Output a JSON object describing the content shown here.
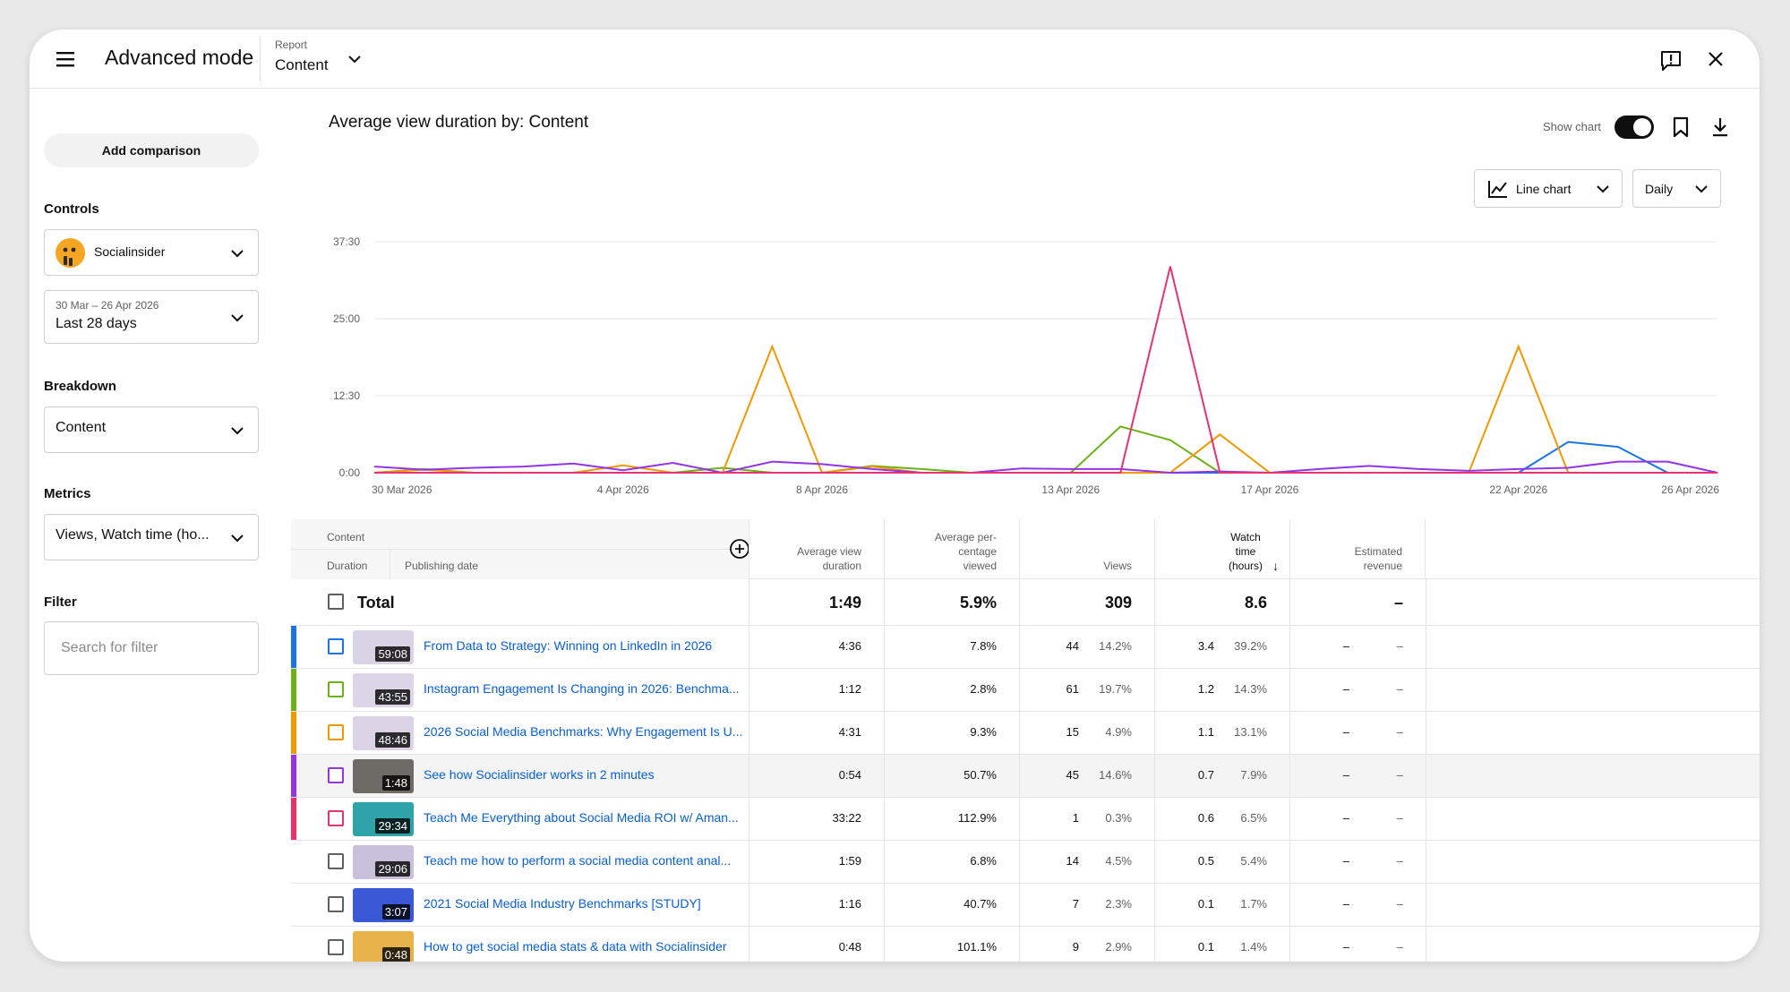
{
  "header": {
    "title": "Advanced mode",
    "report_label": "Report",
    "report_value": "Content"
  },
  "sidebar": {
    "add_comparison": "Add comparison",
    "controls_label": "Controls",
    "channel": "Socialinsider",
    "date_range": "30 Mar – 26 Apr 2026",
    "date_period": "Last 28 days",
    "breakdown_label": "Breakdown",
    "breakdown_value": "Content",
    "metrics_label": "Metrics",
    "metrics_value": "Views, Watch time (ho...",
    "filter_label": "Filter",
    "filter_placeholder": "Search for filter"
  },
  "main": {
    "title": "Average view duration by: Content",
    "show_chart_label": "Show chart",
    "show_chart_on": true,
    "chart_type": "Line chart",
    "interval": "Daily"
  },
  "chart_data": {
    "type": "line",
    "title": "Average view duration by: Content",
    "y_ticks": [
      "0:00",
      "12:30",
      "25:00",
      "37:30"
    ],
    "y_tick_values": [
      0,
      12.5,
      25,
      37.5
    ],
    "ylim": [
      0,
      37.5
    ],
    "x_ticks": [
      "30 Mar 2026",
      "4 Apr 2026",
      "8 Apr 2026",
      "13 Apr 2026",
      "17 Apr 2026",
      "22 Apr 2026",
      "26 Apr 2026"
    ],
    "x_tick_days": [
      0,
      5,
      9,
      14,
      18,
      23,
      27
    ],
    "days": 28,
    "grid": true,
    "series": [
      {
        "color": "#1a73e8",
        "values": [
          0,
          0,
          0,
          0,
          0,
          0,
          0,
          0,
          0,
          0,
          0,
          0,
          0,
          0,
          0,
          0,
          0,
          0,
          0,
          0,
          0,
          0,
          0,
          0,
          5,
          4.2,
          0,
          0
        ]
      },
      {
        "color": "#6bb314",
        "values": [
          0,
          0.6,
          0,
          0,
          0,
          0,
          0,
          0.8,
          0,
          0,
          1.1,
          0.6,
          0,
          0,
          0,
          7.5,
          5.3,
          0,
          0,
          0,
          0,
          0,
          0,
          0,
          0,
          0,
          0,
          0
        ]
      },
      {
        "color": "#f29900",
        "values": [
          0,
          0.5,
          0,
          0,
          0,
          1.2,
          0,
          0,
          20.5,
          0,
          1.0,
          0,
          0,
          0,
          0,
          0,
          0,
          6.2,
          0,
          0,
          0,
          0,
          0,
          20.5,
          0,
          0,
          0,
          0
        ]
      },
      {
        "color": "#9334e6",
        "values": [
          1,
          0.5,
          0.8,
          1.0,
          1.5,
          0.4,
          1.6,
          0,
          1.8,
          1.4,
          0.6,
          0,
          0,
          0.7,
          0.6,
          0.6,
          0,
          0.2,
          0,
          0.6,
          1.1,
          0.6,
          0.3,
          0.6,
          0.8,
          1.8,
          1.8,
          0
        ]
      },
      {
        "color": "#e8336d",
        "values": [
          0,
          0,
          0,
          0,
          0,
          0,
          0,
          0,
          0,
          0,
          0,
          0,
          0,
          0,
          0,
          0,
          33.5,
          0,
          0,
          0,
          0,
          0,
          0,
          0,
          0,
          0,
          0,
          0
        ]
      }
    ]
  },
  "table": {
    "content_header": "Content",
    "duration_header": "Duration",
    "publishing_header": "Publishing date",
    "metric_headers": [
      [
        "Average view",
        "duration"
      ],
      [
        "Average per-",
        "centage",
        "viewed"
      ],
      [
        "Views"
      ],
      [
        "Watch",
        "time",
        "(hours)"
      ],
      [
        "Estimated",
        "revenue"
      ]
    ],
    "sort_arrow": "↓",
    "total": {
      "label": "Total",
      "avd": "1:49",
      "pct": "5.9%",
      "views": "309",
      "watch": "8.6",
      "revenue": "–"
    },
    "rows": [
      {
        "color": "#1a73e8",
        "duration": "59:08",
        "title": "From Data to Strategy: Winning on LinkedIn in 2026",
        "avd": "4:36",
        "pct": "7.8%",
        "views": "44",
        "views_pct": "14.2%",
        "watch": "3.4",
        "watch_pct": "39.2%",
        "rev": "–",
        "rev_pct": "–",
        "thumb": "#d9d3e6",
        "checkbox_color": "#1a73e8"
      },
      {
        "color": "#6bb314",
        "duration": "43:55",
        "title": "Instagram Engagement Is Changing in 2026: Benchma...",
        "avd": "1:12",
        "pct": "2.8%",
        "views": "61",
        "views_pct": "19.7%",
        "watch": "1.2",
        "watch_pct": "14.3%",
        "rev": "–",
        "rev_pct": "–",
        "thumb": "#ddd6e8",
        "checkbox_color": "#6bb314"
      },
      {
        "color": "#f29900",
        "duration": "48:46",
        "title": "2026 Social Media Benchmarks: Why Engagement Is U...",
        "avd": "4:31",
        "pct": "9.3%",
        "views": "15",
        "views_pct": "4.9%",
        "watch": "1.1",
        "watch_pct": "13.1%",
        "rev": "–",
        "rev_pct": "–",
        "thumb": "#dcd4e6",
        "checkbox_color": "#f29900"
      },
      {
        "color": "#9334e6",
        "duration": "1:48",
        "title": "See how Socialinsider works in 2 minutes",
        "avd": "0:54",
        "pct": "50.7%",
        "views": "45",
        "views_pct": "14.6%",
        "watch": "0.7",
        "watch_pct": "7.9%",
        "rev": "–",
        "rev_pct": "–",
        "thumb": "#6e6a66",
        "checkbox_color": "#9334e6"
      },
      {
        "color": "#e8336d",
        "duration": "29:34",
        "title": "Teach Me Everything about Social Media ROI w/ Aman...",
        "avd": "33:22",
        "pct": "112.9%",
        "views": "1",
        "views_pct": "0.3%",
        "watch": "0.6",
        "watch_pct": "6.5%",
        "rev": "–",
        "rev_pct": "–",
        "thumb": "#2ea3a8",
        "checkbox_color": "#e8336d"
      },
      {
        "color": "",
        "duration": "29:06",
        "title": "Teach me how to perform a social media content anal...",
        "avd": "1:59",
        "pct": "6.8%",
        "views": "14",
        "views_pct": "4.5%",
        "watch": "0.5",
        "watch_pct": "5.4%",
        "rev": "–",
        "rev_pct": "–",
        "thumb": "#c9c0dc",
        "checkbox_color": "#606060"
      },
      {
        "color": "",
        "duration": "3:07",
        "title": "2021 Social Media Industry Benchmarks [STUDY]",
        "avd": "1:16",
        "pct": "40.7%",
        "views": "7",
        "views_pct": "2.3%",
        "watch": "0.1",
        "watch_pct": "1.7%",
        "rev": "–",
        "rev_pct": "–",
        "thumb": "#3b58d6",
        "checkbox_color": "#606060"
      },
      {
        "color": "",
        "duration": "0:48",
        "title": "How to get social media stats & data with Socialinsider",
        "avd": "0:48",
        "pct": "101.1%",
        "views": "9",
        "views_pct": "2.9%",
        "watch": "0.1",
        "watch_pct": "1.4%",
        "rev": "–",
        "rev_pct": "–",
        "thumb": "#e8b34a",
        "checkbox_color": "#606060"
      }
    ]
  }
}
